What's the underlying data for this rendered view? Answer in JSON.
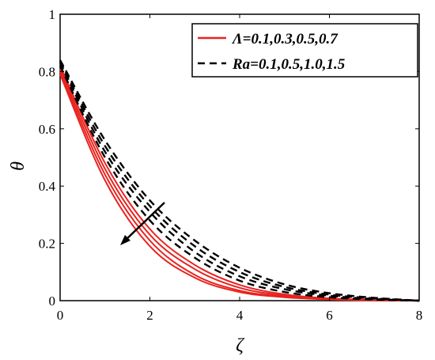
{
  "chart_data": {
    "type": "line",
    "xlabel": "ζ",
    "ylabel": "θ",
    "xlim": [
      0,
      8
    ],
    "ylim": [
      0,
      1
    ],
    "xticks": [
      "0",
      "2",
      "4",
      "6",
      "8"
    ],
    "yticks": [
      "0",
      "0.2",
      "0.4",
      "0.6",
      "0.8",
      "1"
    ],
    "grid": false,
    "legend_position": "top-right",
    "legend": [
      {
        "label": "Λ=0.1,0.3,0.5,0.7",
        "style": "solid",
        "color": "#e8231f"
      },
      {
        "label": "Ra=0.1,0.5,1.0,1.5",
        "style": "dashed",
        "color": "#000000"
      }
    ],
    "annotation": {
      "type": "arrow",
      "direction": "decreasing"
    },
    "x": [
      0,
      1,
      2,
      3,
      4,
      5,
      6,
      7,
      8
    ],
    "series": [
      {
        "group": "Λ",
        "style": "solid",
        "color": "#e8231f",
        "values": [
          0.79,
          0.42,
          0.19,
          0.08,
          0.03,
          0.012,
          0.004,
          0.001,
          0.0
        ]
      },
      {
        "group": "Λ",
        "style": "solid",
        "color": "#e8231f",
        "values": [
          0.8,
          0.44,
          0.21,
          0.09,
          0.035,
          0.014,
          0.005,
          0.0015,
          0.0
        ]
      },
      {
        "group": "Λ",
        "style": "solid",
        "color": "#e8231f",
        "values": [
          0.81,
          0.46,
          0.23,
          0.11,
          0.045,
          0.018,
          0.007,
          0.002,
          0.0
        ]
      },
      {
        "group": "Λ",
        "style": "solid",
        "color": "#e8231f",
        "values": [
          0.82,
          0.48,
          0.25,
          0.125,
          0.055,
          0.022,
          0.008,
          0.003,
          0.0
        ]
      },
      {
        "group": "Ra",
        "style": "dashed",
        "color": "#000000",
        "values": [
          0.82,
          0.5,
          0.28,
          0.15,
          0.07,
          0.03,
          0.012,
          0.004,
          0.0
        ]
      },
      {
        "group": "Ra",
        "style": "dashed",
        "color": "#000000",
        "values": [
          0.83,
          0.52,
          0.31,
          0.17,
          0.085,
          0.04,
          0.017,
          0.006,
          0.0
        ]
      },
      {
        "group": "Ra",
        "style": "dashed",
        "color": "#000000",
        "values": [
          0.835,
          0.54,
          0.33,
          0.19,
          0.1,
          0.048,
          0.021,
          0.008,
          0.0
        ]
      },
      {
        "group": "Ra",
        "style": "dashed",
        "color": "#000000",
        "values": [
          0.84,
          0.56,
          0.35,
          0.21,
          0.115,
          0.057,
          0.026,
          0.01,
          0.0
        ]
      }
    ]
  }
}
